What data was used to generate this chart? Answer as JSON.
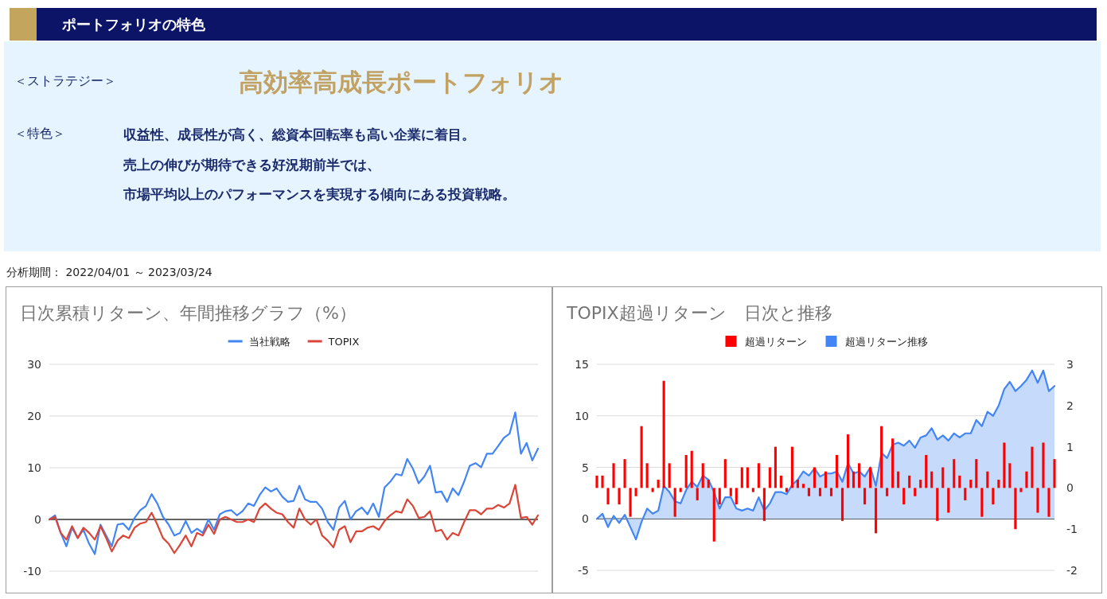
{
  "chart_data": [
    {
      "type": "other",
      "title": "ポートフォリオの特色",
      "annotations": [
        "＜ストラテジー＞",
        "高効率高成長ポートフォリオ",
        "＜特色＞",
        "収益性、成長性が高く、総資本回転率も高い企業に着目。",
        "売上の伸びが期待できる好況期前半では、",
        "市場平均以上のパフォーマンスを実現する傾向にある投資戦略。",
        "分析期間： 2022/04/01 ～ 2023/03/24"
      ]
    },
    {
      "type": "line",
      "title": "日次累積リターン、年間推移グラフ（%）",
      "legend": "top",
      "grid": "y",
      "ylim": [
        -10,
        30
      ],
      "yticks": [
        -10,
        0,
        10,
        20,
        30
      ],
      "categories": [
        null,
        null,
        null,
        null,
        null,
        null,
        null,
        null,
        null,
        null,
        null,
        null,
        null,
        null,
        null,
        null,
        null,
        null,
        null,
        null,
        null,
        null,
        null,
        null,
        null,
        null,
        null,
        null,
        null,
        null,
        null,
        null,
        null,
        null,
        null,
        null,
        null,
        null,
        null,
        null,
        null,
        null,
        null,
        null,
        null,
        null,
        null,
        null,
        null,
        null,
        null,
        null,
        null,
        null,
        null,
        null,
        null,
        null,
        null,
        null,
        null,
        null,
        null,
        null,
        null,
        null,
        null,
        null,
        null,
        null,
        null,
        null,
        null,
        null,
        null,
        null,
        null,
        null,
        null,
        null,
        null,
        null,
        null,
        null,
        null,
        null,
        null
      ],
      "series": [
        {
          "name": "当社戦略",
          "color": "#4285f4",
          "values": [
            0,
            0.8,
            -2.6,
            -5.2,
            -1.6,
            -3.6,
            -2,
            -4.7,
            -6.7,
            -1,
            -3.1,
            -5.2,
            -1,
            -0.8,
            -2,
            0.3,
            1.8,
            2.6,
            4.9,
            3.1,
            0.5,
            -1,
            -3.1,
            -2.6,
            -0.3,
            -2.6,
            -1.8,
            -2.6,
            0,
            -2,
            1,
            1.6,
            1.8,
            0.8,
            1.6,
            3.1,
            2.6,
            4.7,
            6.2,
            5.4,
            6,
            4.4,
            3.4,
            3.6,
            6.5,
            3.9,
            3.4,
            3.4,
            2.1,
            -0.5,
            -2,
            2.3,
            3.6,
            0,
            1.6,
            2.3,
            1,
            3.1,
            0.5,
            6.2,
            7.3,
            8.8,
            8.5,
            11.7,
            9.8,
            7,
            8.3,
            10.4,
            5.2,
            5.4,
            3.4,
            6,
            4.7,
            7.3,
            10.4,
            10.9,
            10.1,
            12.7,
            12.7,
            14.2,
            15.8,
            16.6,
            20.7,
            12.7,
            14.8,
            11.4,
            13.7
          ]
        },
        {
          "name": "TOPIX",
          "color": "#db4437",
          "values": [
            0,
            0.5,
            -2.6,
            -3.9,
            -1.3,
            -3.6,
            -1.6,
            -2.6,
            -3.9,
            -1.3,
            -3.6,
            -6.2,
            -4.1,
            -3.1,
            -3.6,
            -1.6,
            -0.8,
            -0.5,
            1.3,
            -1,
            -3.6,
            -4.7,
            -6.5,
            -4.9,
            -3.1,
            -5.2,
            -2.6,
            -3.1,
            -1,
            -2.8,
            0,
            0.5,
            0,
            -0.5,
            -0.5,
            0,
            -0.5,
            2.1,
            3.1,
            2.1,
            1.3,
            1,
            -0.5,
            -1.6,
            2.1,
            0,
            -1,
            0,
            -3.1,
            -4.1,
            -5.4,
            -2,
            -1.3,
            -4.4,
            -2.3,
            -2.3,
            -1.6,
            -1.3,
            -2,
            -0.3,
            0.8,
            1.6,
            1.3,
            3.9,
            2.6,
            0.3,
            0.5,
            1.6,
            -2.3,
            -2,
            -3.9,
            -2.6,
            -3.1,
            -0.5,
            1.8,
            1.8,
            1,
            2.1,
            2.1,
            2.8,
            2.3,
            3.1,
            6.7,
            0.3,
            0.5,
            -1,
            0.8
          ]
        }
      ]
    },
    {
      "type": "bar",
      "title": "TOPIX超過リターン　日次と推移",
      "legend": "top",
      "grid": "y",
      "ylim": [
        -5,
        15
      ],
      "yticks": [
        -5,
        0,
        5,
        10,
        15
      ],
      "y2lim": [
        -2,
        3
      ],
      "y2ticks": [
        -2,
        -1,
        0,
        1,
        2,
        3
      ],
      "categories": [
        null,
        null,
        null,
        null,
        null,
        null,
        null,
        null,
        null,
        null,
        null,
        null,
        null,
        null,
        null,
        null,
        null,
        null,
        null,
        null,
        null,
        null,
        null,
        null,
        null,
        null,
        null,
        null,
        null,
        null,
        null,
        null,
        null,
        null,
        null,
        null,
        null,
        null,
        null,
        null,
        null,
        null,
        null,
        null,
        null,
        null,
        null,
        null,
        null,
        null,
        null,
        null,
        null,
        null,
        null,
        null,
        null,
        null,
        null,
        null,
        null,
        null,
        null,
        null,
        null,
        null,
        null,
        null,
        null,
        null,
        null,
        null,
        null,
        null,
        null,
        null,
        null,
        null,
        null,
        null,
        null,
        null,
        null
      ],
      "series": [
        {
          "name": "超過リターン",
          "type": "bar",
          "axis": "y2",
          "color": "#ff0000",
          "values": [
            0.3,
            0.3,
            -0.4,
            0.6,
            -0.4,
            0.7,
            -0.7,
            -0.2,
            1.5,
            0.6,
            -0.1,
            0.2,
            2.6,
            0.6,
            -0.7,
            -0.1,
            0.8,
            0.9,
            -0.3,
            0.6,
            0.2,
            -1.3,
            -0.4,
            0.7,
            -0.2,
            -0.4,
            0.5,
            0.5,
            -0.1,
            0.6,
            -0.8,
            0.5,
            1,
            0.3,
            -0.1,
            1,
            0.2,
            0.1,
            -0.2,
            0.5,
            -0.2,
            0.4,
            -0.2,
            0.8,
            -0.8,
            1.3,
            0.4,
            0.6,
            -0.4,
            0.5,
            -1.1,
            1.5,
            -0.2,
            1.2,
            0.4,
            -0.4,
            0.3,
            -0.2,
            0.2,
            0.8,
            0.4,
            -0.8,
            0.5,
            -0.6,
            0.7,
            0.3,
            -0.3,
            0.2,
            0.7,
            -0.7,
            0.4,
            -0.4,
            0.2,
            1.1,
            0.6,
            -1,
            -0.1,
            0.4,
            1,
            -0.6,
            1.1,
            -0.7,
            0.7
          ]
        },
        {
          "name": "超過リターン推移",
          "type": "area",
          "color": "#4285f4",
          "values": [
            0,
            0.5,
            -0.8,
            0.3,
            -0.4,
            0.4,
            -0.8,
            -2,
            -0.3,
            1,
            0.5,
            0.8,
            3.2,
            2.6,
            1.7,
            1.5,
            2.8,
            3.6,
            3.1,
            4.2,
            3.8,
            2.6,
            1,
            2.1,
            2.1,
            1,
            0.8,
            1,
            0.8,
            2.1,
            0.8,
            1.5,
            2.6,
            2.6,
            2.4,
            3.3,
            3.8,
            4.6,
            4.2,
            4.9,
            4.1,
            4.4,
            4.4,
            4.6,
            3.6,
            5.4,
            4.4,
            4.6,
            4.1,
            5,
            3.2,
            6.4,
            5.9,
            7.2,
            7.4,
            7.1,
            7.6,
            6.9,
            7.9,
            8.1,
            8.8,
            7.7,
            8.1,
            7.6,
            8.3,
            7.9,
            8.3,
            8.3,
            9.6,
            9,
            10.4,
            10,
            11,
            12.6,
            13.3,
            12.4,
            12.9,
            13.5,
            14.4,
            13.2,
            14.4,
            12.4,
            12.9
          ]
        }
      ]
    }
  ]
}
